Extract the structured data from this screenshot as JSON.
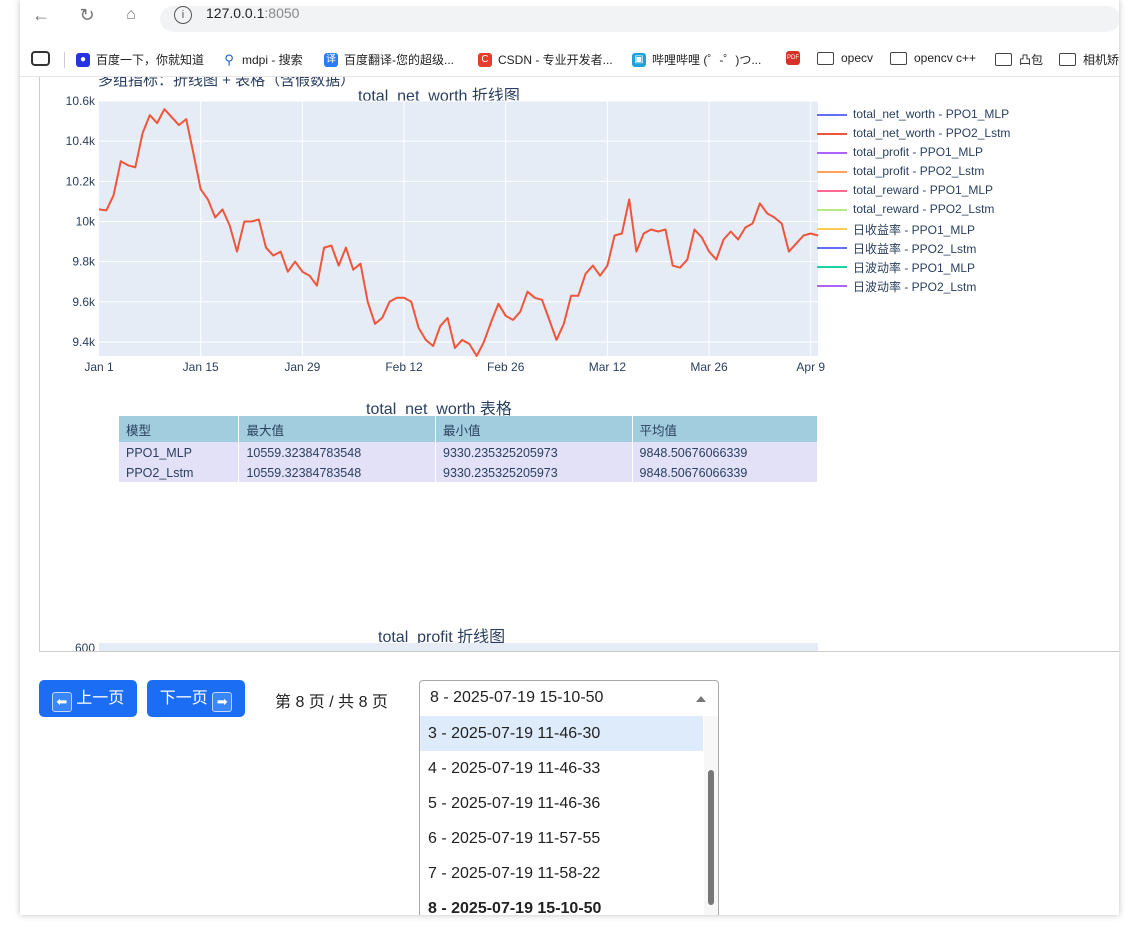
{
  "browser": {
    "url_host": "127.0.0.1",
    "url_port": ":8050",
    "bookmarks": [
      {
        "label": "百度一下，你就知道",
        "icon": "baidu-paw-icon",
        "color": "#2932e1"
      },
      {
        "label": "mdpi - 搜索",
        "icon": "search-icon",
        "color": "#1a5fd6"
      },
      {
        "label": "百度翻译-您的超级...",
        "icon": "translate-icon",
        "color": "#2c7bf6"
      },
      {
        "label": "CSDN - 专业开发者...",
        "icon": "csdn-icon",
        "color": "#e63c2d"
      },
      {
        "label": "哔哩哔哩 (゜-゜)つ...",
        "icon": "bilibili-icon",
        "color": "#20a1d8"
      },
      {
        "label": "opecv",
        "icon": "folder-icon"
      },
      {
        "label": "opencv c++",
        "icon": "folder-icon"
      },
      {
        "label": "凸包",
        "icon": "folder-icon"
      },
      {
        "label": "相机矫正",
        "icon": "folder-icon"
      }
    ]
  },
  "page": {
    "heading": "多组指标：折线图 + 表格（含假数据）",
    "line_chart_title": "total_net_worth 折线图",
    "table_title": "total_net_worth 表格",
    "next_chart_title": "total_profit 折线图",
    "next_chart_first_tick": "600"
  },
  "legend": [
    {
      "name": "total_net_worth - PPO1_MLP",
      "color": "#636efa"
    },
    {
      "name": "total_net_worth - PPO2_Lstm",
      "color": "#ef553b"
    },
    {
      "name": "total_profit - PPO1_MLP",
      "color": "#ab63fa"
    },
    {
      "name": "total_profit - PPO2_Lstm",
      "color": "#ffa15a"
    },
    {
      "name": "total_reward - PPO1_MLP",
      "color": "#ff6692"
    },
    {
      "name": "total_reward - PPO2_Lstm",
      "color": "#b6e880"
    },
    {
      "name": "日收益率 - PPO1_MLP",
      "color": "#fecb52"
    },
    {
      "name": "日收益率 - PPO2_Lstm",
      "color": "#636efa"
    },
    {
      "name": "日波动率 - PPO1_MLP",
      "color": "#19d3a0"
    },
    {
      "name": "日波动率 - PPO2_Lstm",
      "color": "#ab63fa"
    }
  ],
  "table": {
    "headers": [
      "模型",
      "最大值",
      "最小值",
      "平均值"
    ],
    "rows": [
      [
        "PPO1_MLP",
        "10559.32384783548",
        "9330.235325205973",
        "9848.50676066339"
      ],
      [
        "PPO2_Lstm",
        "10559.32384783548",
        "9330.235325205973",
        "9848.50676066339"
      ]
    ]
  },
  "controls": {
    "prev_label": "上一页",
    "prev_icon": "arrow-left-icon",
    "next_label": "下一页",
    "next_icon": "arrow-right-icon",
    "page_info": "第 8 页 / 共 8 页",
    "select_value": "8 - 2025-07-19 15-10-50",
    "options": [
      "3 - 2025-07-19 11-46-30",
      "4 - 2025-07-19 11-46-33",
      "5 - 2025-07-19 11-46-36",
      "6 - 2025-07-19 11-57-55",
      "7 - 2025-07-19 11-58-22",
      "8 - 2025-07-19 15-10-50"
    ],
    "highlighted_option": 0,
    "selected_option": 5
  },
  "chart_data": {
    "type": "line",
    "title": "total_net_worth 折线图",
    "x_tick_labels": [
      "Jan 1\n2023",
      "Jan 15",
      "Jan 29",
      "Feb 12",
      "Feb 26",
      "Mar 12",
      "Mar 26",
      "Apr 9"
    ],
    "y_tick_labels": [
      "9.4k",
      "9.6k",
      "9.8k",
      "10k",
      "10.2k",
      "10.4k",
      "10.6k"
    ],
    "ylim": [
      9330,
      10600
    ],
    "grid": true,
    "legend_position": "right",
    "series": [
      {
        "name": "total_net_worth - PPO2_Lstm",
        "color": "#ef553b",
        "start_date": "2023-01-01",
        "values": [
          10060,
          10055,
          10130,
          10300,
          10280,
          10270,
          10440,
          10530,
          10490,
          10559,
          10520,
          10480,
          10510,
          10340,
          10160,
          10110,
          10020,
          10060,
          9980,
          9850,
          10000,
          10000,
          10010,
          9870,
          9830,
          9850,
          9750,
          9800,
          9750,
          9730,
          9680,
          9870,
          9880,
          9780,
          9870,
          9760,
          9790,
          9600,
          9490,
          9520,
          9600,
          9620,
          9620,
          9600,
          9470,
          9410,
          9380,
          9480,
          9520,
          9370,
          9410,
          9390,
          9330,
          9400,
          9500,
          9590,
          9530,
          9510,
          9550,
          9650,
          9620,
          9610,
          9510,
          9410,
          9490,
          9630,
          9630,
          9740,
          9780,
          9730,
          9780,
          9930,
          9940,
          10110,
          9850,
          9940,
          9960,
          9950,
          9960,
          9780,
          9770,
          9810,
          9960,
          9920,
          9850,
          9810,
          9910,
          9950,
          9910,
          9970,
          9990,
          10090,
          10040,
          10020,
          9990,
          9850,
          9890,
          9930,
          9940,
          9930
        ]
      }
    ]
  }
}
